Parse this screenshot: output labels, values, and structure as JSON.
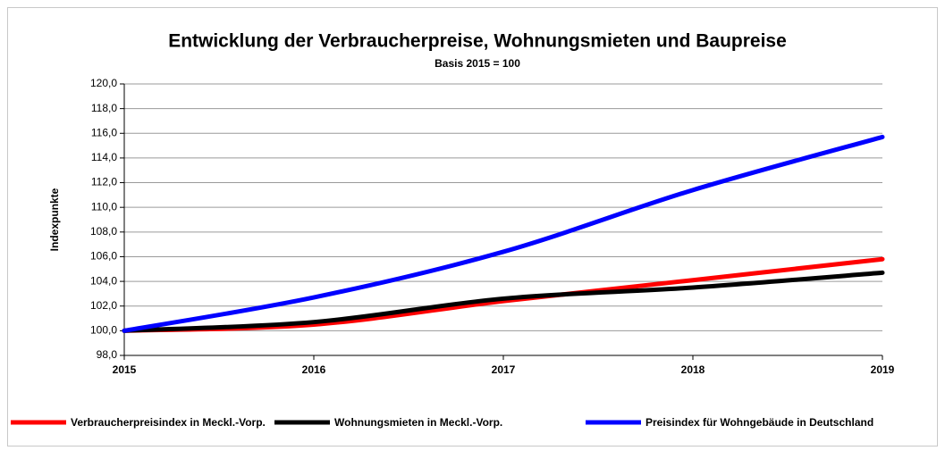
{
  "chart_data": {
    "type": "line",
    "title": "Entwicklung der Verbraucherpreise, Wohnungsmieten und Baupreise",
    "subtitle": "Basis 2015 = 100",
    "y_label": "Indexpunkte",
    "x": [
      2015,
      2016,
      2017,
      2018,
      2019
    ],
    "series": [
      {
        "name": "Verbraucherpreisindex in Meckl.-Vorp.",
        "color": "#ff0000",
        "values": [
          100,
          100.5,
          102.4,
          104.1,
          105.8
        ]
      },
      {
        "name": "Wohnungsmieten in Meckl.-Vorp.",
        "color": "#000000",
        "values": [
          100,
          100.7,
          102.6,
          103.5,
          104.7
        ]
      },
      {
        "name": "Preisindex für Wohngebäude in Deutschland",
        "color": "#0000ff",
        "values": [
          100,
          102.7,
          106.4,
          111.4,
          115.7
        ]
      }
    ],
    "xlim": [
      2015,
      2019
    ],
    "xticks": [
      2015,
      2016,
      2017,
      2018,
      2019
    ],
    "ylim": [
      98,
      120
    ],
    "yticks": [
      {
        "value": 98,
        "label": "98,0"
      },
      {
        "value": 100,
        "label": "100,0"
      },
      {
        "value": 102,
        "label": "102,0"
      },
      {
        "value": 104,
        "label": "104,0"
      },
      {
        "value": 106,
        "label": "106,0"
      },
      {
        "value": 108,
        "label": "108,0"
      },
      {
        "value": 110,
        "label": "110,0"
      },
      {
        "value": 112,
        "label": "112,0"
      },
      {
        "value": 114,
        "label": "114,0"
      },
      {
        "value": 116,
        "label": "116,0"
      },
      {
        "value": 118,
        "label": "118,0"
      },
      {
        "value": 120,
        "label": "120,0"
      }
    ],
    "grid": true,
    "legend": "bottom"
  }
}
